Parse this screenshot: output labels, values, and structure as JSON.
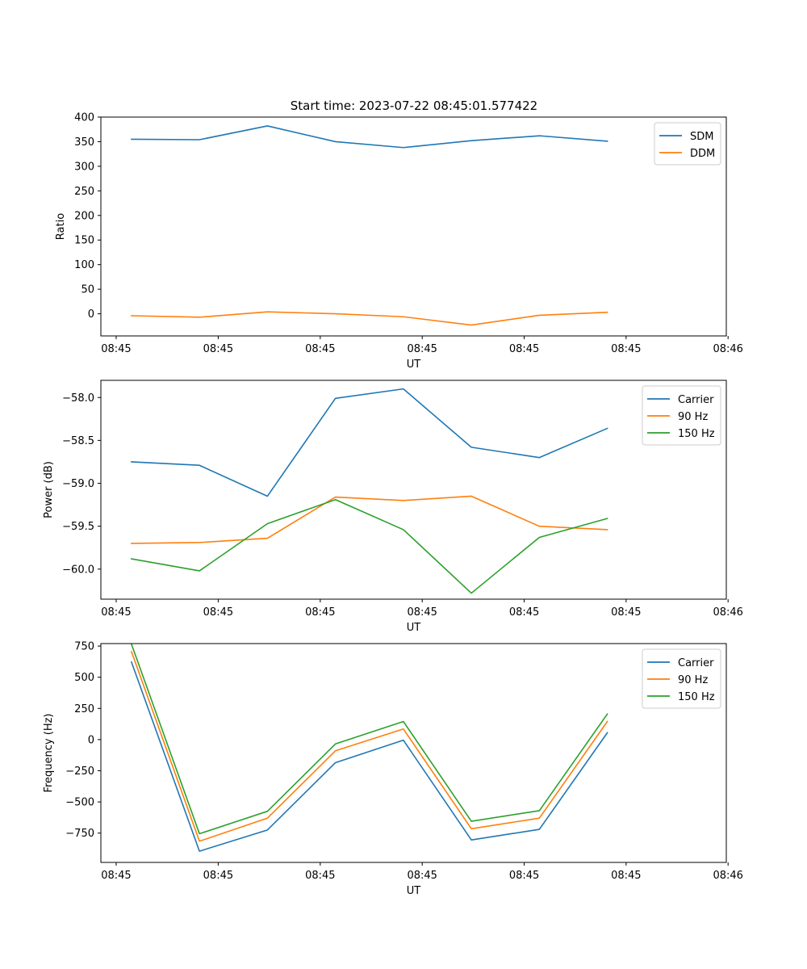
{
  "figure": {
    "title": "Start time: 2023-07-22 08:45:01.577422"
  },
  "chart_data": [
    {
      "type": "line",
      "title": "Start time: 2023-07-22 08:45:01.577422",
      "xlabel": "UT",
      "ylabel": "Ratio",
      "xlim": [
        -0.45,
        8.75
      ],
      "ylim": [
        -45,
        400
      ],
      "xticks": [
        -0.225,
        1.276,
        2.777,
        4.277,
        5.777,
        7.276,
        8.776
      ],
      "xticklabels": [
        "08:45",
        "08:45",
        "08:45",
        "08:45",
        "08:45",
        "08:45",
        "08:46"
      ],
      "yticks": [
        0,
        50,
        100,
        150,
        200,
        250,
        300,
        350,
        400
      ],
      "yticklabels": [
        "0",
        "50",
        "100",
        "150",
        "200",
        "250",
        "300",
        "350",
        "400"
      ],
      "grid": false,
      "legend": "upper right",
      "x": [
        0,
        1,
        2,
        3,
        4,
        5,
        6,
        7
      ],
      "series": [
        {
          "name": "SDM",
          "color": "#1f77b4",
          "values": [
            355,
            354,
            382,
            350,
            338,
            352,
            362,
            351
          ]
        },
        {
          "name": "DDM",
          "color": "#ff7f0e",
          "values": [
            -4,
            -7,
            4,
            0,
            -6,
            -23,
            -3,
            3
          ]
        }
      ]
    },
    {
      "type": "line",
      "title": "",
      "xlabel": "UT",
      "ylabel": "Power (dB)",
      "xlim": [
        -0.45,
        8.75
      ],
      "ylim": [
        -60.35,
        -57.8
      ],
      "xticks": [
        -0.225,
        1.276,
        2.777,
        4.277,
        5.777,
        7.276,
        8.776
      ],
      "xticklabels": [
        "08:45",
        "08:45",
        "08:45",
        "08:45",
        "08:45",
        "08:45",
        "08:46"
      ],
      "yticks": [
        -60.0,
        -59.5,
        -59.0,
        -58.5,
        -58.0
      ],
      "yticklabels": [
        "−60.0",
        "−59.5",
        "−59.0",
        "−58.5",
        "−58.0"
      ],
      "grid": false,
      "legend": "upper right",
      "x": [
        0,
        1,
        2,
        3,
        4,
        5,
        6,
        7
      ],
      "series": [
        {
          "name": "Carrier",
          "color": "#1f77b4",
          "values": [
            -58.75,
            -58.79,
            -59.15,
            -58.01,
            -57.9,
            -58.58,
            -58.7,
            -58.36
          ]
        },
        {
          "name": "90 Hz",
          "color": "#ff7f0e",
          "values": [
            -59.7,
            -59.69,
            -59.64,
            -59.16,
            -59.2,
            -59.15,
            -59.5,
            -59.54
          ]
        },
        {
          "name": "150 Hz",
          "color": "#2ca02c",
          "values": [
            -59.88,
            -60.02,
            -59.47,
            -59.19,
            -59.54,
            -60.28,
            -59.63,
            -59.41
          ]
        }
      ]
    },
    {
      "type": "line",
      "title": "",
      "xlabel": "UT",
      "ylabel": "Frequency (Hz)",
      "xlim": [
        -0.45,
        8.75
      ],
      "ylim": [
        -985,
        770
      ],
      "xticks": [
        -0.225,
        1.276,
        2.777,
        4.277,
        5.777,
        7.276,
        8.776
      ],
      "xticklabels": [
        "08:45",
        "08:45",
        "08:45",
        "08:45",
        "08:45",
        "08:45",
        "08:46"
      ],
      "yticks": [
        -750,
        -500,
        -250,
        0,
        250,
        500,
        750
      ],
      "yticklabels": [
        "−750",
        "−500",
        "−250",
        "0",
        "250",
        "500",
        "750"
      ],
      "grid": false,
      "legend": "upper right",
      "x": [
        0,
        1,
        2,
        3,
        4,
        5,
        6,
        7
      ],
      "series": [
        {
          "name": "Carrier",
          "color": "#1f77b4",
          "values": [
            622,
            -895,
            -725,
            -185,
            -5,
            -805,
            -720,
            55
          ]
        },
        {
          "name": "90 Hz",
          "color": "#ff7f0e",
          "values": [
            705,
            -815,
            -630,
            -90,
            85,
            -715,
            -630,
            145
          ]
        },
        {
          "name": "150 Hz",
          "color": "#2ca02c",
          "values": [
            765,
            -755,
            -575,
            -35,
            145,
            -655,
            -570,
            205
          ]
        }
      ]
    }
  ]
}
